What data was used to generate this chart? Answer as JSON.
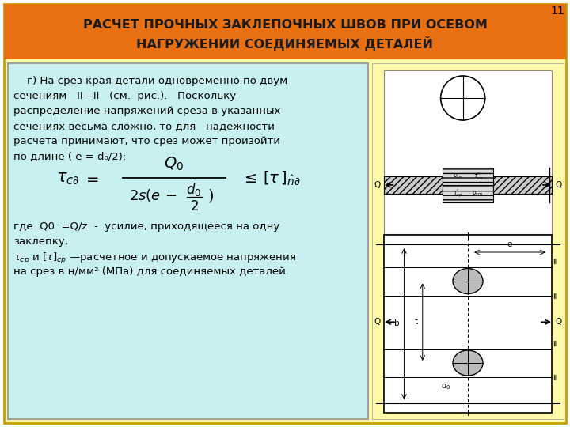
{
  "title_line1": "РАСЧЕТ ПРОЧНЫХ ЗАКЛЕПОЧНЫХ ШВОВ ПРИ ОСЕВОМ",
  "title_line2": "НАГРУЖЕНИИ СОЕДИНЯЕМЫХ ДЕТАЛЕЙ",
  "title_bg": "#E87010",
  "title_text_color": "#1a1a1a",
  "outer_bg": "#FFFAAA",
  "inner_bg": "#C8F0F0",
  "slide_bg": "#FFFFFF",
  "page_number": "11",
  "border_color": "#C8A000"
}
